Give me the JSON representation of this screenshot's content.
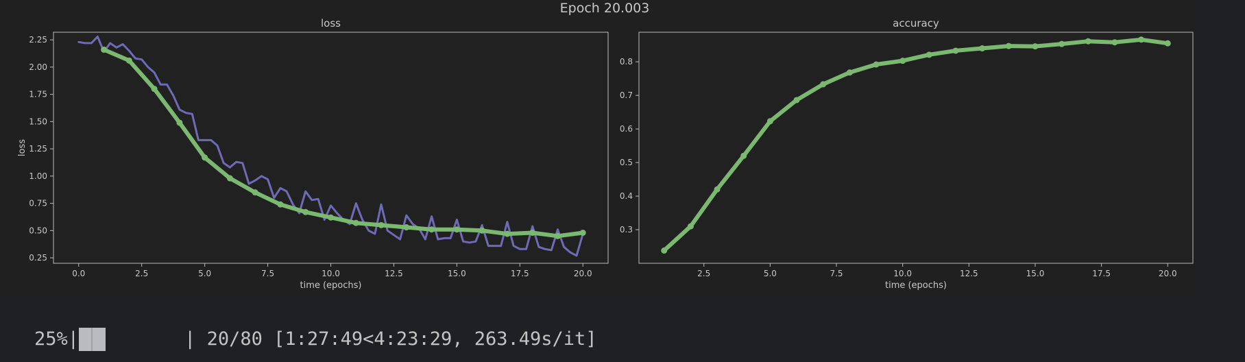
{
  "suptitle": "Epoch 20.003",
  "progress": {
    "percent_label": "25%",
    "fraction": 0.25,
    "separator_left": "|",
    "separator_right": "|",
    "counts": "20/80",
    "timing": "[1:27:49<4:23:29, 263.49s/it]"
  },
  "colors": {
    "background": "#1f2023",
    "axes_face": "#212122",
    "spine": "#bdbdbd",
    "text": "#c8c8c8",
    "raw_series": "#6f6ab5",
    "smooth_series": "#7cb970"
  },
  "chart_data": [
    {
      "type": "line",
      "title": "loss",
      "xlabel": "time (epochs)",
      "ylabel": "loss",
      "xlim": [
        -1.0,
        21.0
      ],
      "ylim": [
        0.2,
        2.32
      ],
      "xticks": [
        0.0,
        2.5,
        5.0,
        7.5,
        10.0,
        12.5,
        15.0,
        17.5,
        20.0
      ],
      "xtick_labels": [
        "0.0",
        "2.5",
        "5.0",
        "7.5",
        "10.0",
        "12.5",
        "15.0",
        "17.5",
        "20.0"
      ],
      "yticks": [
        0.25,
        0.5,
        0.75,
        1.0,
        1.25,
        1.5,
        1.75,
        2.0,
        2.25
      ],
      "ytick_labels": [
        "0.25",
        "0.50",
        "0.75",
        "1.00",
        "1.25",
        "1.50",
        "1.75",
        "2.00",
        "2.25"
      ],
      "grid": false,
      "series": [
        {
          "color": "#6f6ab5",
          "markers": false,
          "width": 3,
          "x": [
            0.0,
            0.25,
            0.5,
            0.75,
            1.0,
            1.25,
            1.5,
            1.75,
            2.0,
            2.25,
            2.5,
            2.75,
            3.0,
            3.25,
            3.5,
            3.75,
            4.0,
            4.25,
            4.5,
            4.75,
            5.0,
            5.25,
            5.5,
            5.75,
            6.0,
            6.25,
            6.5,
            6.75,
            7.0,
            7.25,
            7.5,
            7.75,
            8.0,
            8.25,
            8.5,
            8.75,
            9.0,
            9.25,
            9.5,
            9.75,
            10.0,
            10.25,
            10.5,
            10.75,
            11.0,
            11.25,
            11.5,
            11.75,
            12.0,
            12.25,
            12.5,
            12.75,
            13.0,
            13.25,
            13.5,
            13.75,
            14.0,
            14.25,
            14.5,
            14.75,
            15.0,
            15.25,
            15.5,
            15.75,
            16.0,
            16.25,
            16.5,
            16.75,
            17.0,
            17.25,
            17.5,
            17.75,
            18.0,
            18.25,
            18.5,
            18.75,
            19.0,
            19.25,
            19.5,
            19.75,
            20.0
          ],
          "y": [
            2.23,
            2.22,
            2.22,
            2.28,
            2.14,
            2.22,
            2.18,
            2.21,
            2.15,
            2.08,
            2.07,
            2.0,
            1.95,
            1.84,
            1.84,
            1.74,
            1.61,
            1.58,
            1.57,
            1.33,
            1.33,
            1.33,
            1.28,
            1.12,
            1.08,
            1.13,
            1.12,
            0.93,
            0.96,
            1.0,
            0.97,
            0.8,
            0.89,
            0.86,
            0.74,
            0.66,
            0.86,
            0.78,
            0.79,
            0.6,
            0.73,
            0.66,
            0.6,
            0.56,
            0.75,
            0.6,
            0.5,
            0.47,
            0.74,
            0.5,
            0.46,
            0.42,
            0.64,
            0.56,
            0.52,
            0.42,
            0.63,
            0.42,
            0.43,
            0.43,
            0.6,
            0.4,
            0.39,
            0.4,
            0.55,
            0.36,
            0.36,
            0.36,
            0.58,
            0.36,
            0.33,
            0.33,
            0.54,
            0.35,
            0.33,
            0.32,
            0.51,
            0.35,
            0.3,
            0.27,
            0.47
          ]
        },
        {
          "color": "#7cb970",
          "markers": true,
          "width": 6,
          "x": [
            1,
            2,
            3,
            4,
            5,
            6,
            7,
            8,
            9,
            10,
            11,
            12,
            13,
            14,
            15,
            16,
            17,
            18,
            19,
            20
          ],
          "y": [
            2.16,
            2.06,
            1.8,
            1.49,
            1.17,
            0.98,
            0.85,
            0.74,
            0.67,
            0.62,
            0.57,
            0.55,
            0.53,
            0.51,
            0.51,
            0.5,
            0.47,
            0.48,
            0.45,
            0.48
          ]
        }
      ]
    },
    {
      "type": "line",
      "title": "accuracy",
      "xlabel": "time (epochs)",
      "ylabel": "",
      "xlim": [
        0.05,
        20.95
      ],
      "ylim": [
        0.2,
        0.888
      ],
      "xticks": [
        2.5,
        5.0,
        7.5,
        10.0,
        12.5,
        15.0,
        17.5,
        20.0
      ],
      "xtick_labels": [
        "2.5",
        "5.0",
        "7.5",
        "10.0",
        "12.5",
        "15.0",
        "17.5",
        "20.0"
      ],
      "yticks": [
        0.3,
        0.4,
        0.5,
        0.6,
        0.7,
        0.8
      ],
      "ytick_labels": [
        "0.3",
        "0.4",
        "0.5",
        "0.6",
        "0.7",
        "0.8"
      ],
      "grid": false,
      "series": [
        {
          "color": "#7cb970",
          "markers": true,
          "width": 6,
          "x": [
            1,
            2,
            3,
            4,
            5,
            6,
            7,
            8,
            9,
            10,
            11,
            12,
            13,
            14,
            15,
            16,
            17,
            18,
            19,
            20
          ],
          "y": [
            0.238,
            0.31,
            0.42,
            0.52,
            0.623,
            0.686,
            0.733,
            0.768,
            0.792,
            0.803,
            0.821,
            0.833,
            0.84,
            0.847,
            0.846,
            0.853,
            0.861,
            0.858,
            0.866,
            0.855
          ]
        }
      ]
    }
  ]
}
